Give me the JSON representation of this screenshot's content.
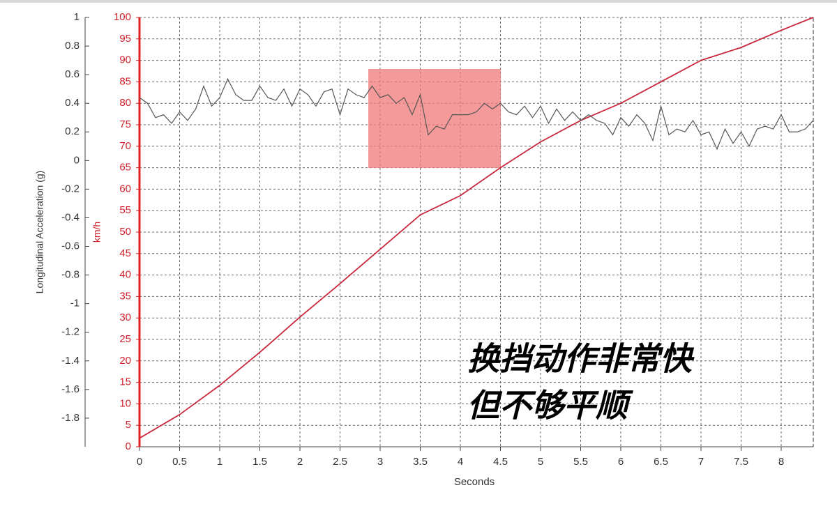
{
  "chart_data": {
    "type": "line",
    "xlabel": "Seconds",
    "ylabel": "km/h",
    "y2label": "Longitudinal Acceleration (g)",
    "annotation": [
      "换挡动作非常快",
      "但不够平顺"
    ],
    "xlim": [
      0,
      8.4
    ],
    "xticks": [
      0,
      0.5,
      1,
      1.5,
      2,
      2.5,
      3,
      3.5,
      4,
      4.5,
      5,
      5.5,
      6,
      6.5,
      7,
      7.5,
      8
    ],
    "ylim": [
      0,
      100
    ],
    "yticks": [
      0,
      5,
      10,
      15,
      20,
      25,
      30,
      35,
      40,
      45,
      50,
      55,
      60,
      65,
      70,
      75,
      80,
      85,
      90,
      95,
      100
    ],
    "y2lim": [
      -2,
      1
    ],
    "y2ticks": [
      1,
      0.8,
      0.6,
      0.4,
      0.2,
      0,
      -0.2,
      -0.4,
      -0.6,
      -0.8,
      -1,
      -1.2,
      -1.4,
      -1.6,
      -1.8
    ],
    "grid": true,
    "series": [
      {
        "name": "km/h",
        "color": "#c8283c",
        "x": [
          0,
          0.5,
          1,
          1.5,
          2,
          2.5,
          3,
          3.5,
          4,
          4.5,
          5,
          5.5,
          6,
          6.5,
          7,
          7.5,
          8,
          8.4
        ],
        "values": [
          2,
          7.5,
          14.3,
          22,
          30.2,
          38,
          46,
          54,
          58.5,
          65,
          71,
          76,
          80,
          85,
          90,
          93,
          97,
          100
        ]
      },
      {
        "name": "Longitudinal Acceleration (g)",
        "color": "#555555",
        "axis": "y2",
        "x": [
          0,
          0.1,
          0.2,
          0.3,
          0.4,
          0.5,
          0.6,
          0.7,
          0.8,
          0.9,
          1,
          1.1,
          1.2,
          1.3,
          1.4,
          1.5,
          1.6,
          1.7,
          1.8,
          1.9,
          2,
          2.1,
          2.2,
          2.3,
          2.4,
          2.5,
          2.6,
          2.7,
          2.8,
          2.9,
          3,
          3.1,
          3.2,
          3.3,
          3.4,
          3.5,
          3.6,
          3.7,
          3.8,
          3.9,
          4,
          4.1,
          4.2,
          4.3,
          4.4,
          4.5,
          4.6,
          4.7,
          4.8,
          4.9,
          5,
          5.1,
          5.2,
          5.3,
          5.4,
          5.5,
          5.6,
          5.7,
          5.8,
          5.9,
          6,
          6.1,
          6.2,
          6.3,
          6.4,
          6.5,
          6.6,
          6.7,
          6.8,
          6.9,
          7,
          7.1,
          7.2,
          7.3,
          7.4,
          7.5,
          7.6,
          7.7,
          7.8,
          7.9,
          8,
          8.1,
          8.2,
          8.3,
          8.4
        ],
        "values": [
          0.44,
          0.4,
          0.3,
          0.32,
          0.26,
          0.34,
          0.28,
          0.36,
          0.52,
          0.38,
          0.44,
          0.57,
          0.46,
          0.42,
          0.42,
          0.52,
          0.44,
          0.42,
          0.5,
          0.38,
          0.5,
          0.46,
          0.38,
          0.48,
          0.5,
          0.32,
          0.5,
          0.46,
          0.44,
          0.52,
          0.44,
          0.46,
          0.4,
          0.44,
          0.32,
          0.46,
          0.18,
          0.24,
          0.22,
          0.32,
          0.32,
          0.32,
          0.34,
          0.4,
          0.36,
          0.4,
          0.34,
          0.32,
          0.38,
          0.3,
          0.38,
          0.26,
          0.36,
          0.28,
          0.34,
          0.28,
          0.32,
          0.28,
          0.26,
          0.18,
          0.3,
          0.24,
          0.32,
          0.26,
          0.14,
          0.38,
          0.18,
          0.22,
          0.2,
          0.28,
          0.18,
          0.2,
          0.08,
          0.22,
          0.12,
          0.2,
          0.1,
          0.22,
          0.24,
          0.22,
          0.32,
          0.2,
          0.2,
          0.22,
          0.28
        ]
      }
    ]
  }
}
